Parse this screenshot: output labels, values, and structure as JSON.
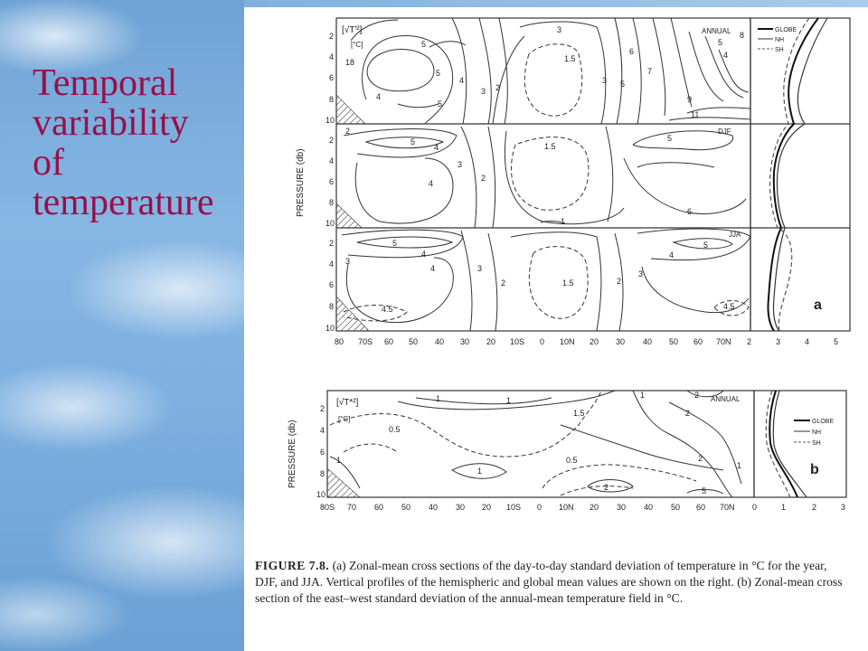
{
  "slide": {
    "title_lines": [
      "Temporal",
      "variability",
      "of",
      "temperature"
    ]
  },
  "figure_a": {
    "ylabel": "PRESSURE (db)",
    "y_ticks": [
      "2",
      "4",
      "6",
      "8",
      "10"
    ],
    "x_ticks": [
      "80",
      "70S",
      "60",
      "50",
      "40",
      "30",
      "20",
      "10S",
      "0",
      "10N",
      "20",
      "30",
      "40",
      "50",
      "60",
      "70N"
    ],
    "profile_ticks": [
      "2",
      "3",
      "4",
      "5"
    ],
    "panels": [
      {
        "season": "ANNUAL",
        "units_label": "[√T'²]",
        "units": "[°C]"
      },
      {
        "season": "DJF"
      },
      {
        "season": "JJA"
      }
    ],
    "legend": [
      "GLOBE",
      "NH",
      "SH"
    ],
    "panel_letter": "a",
    "contour_labels_annual": [
      "3",
      "5",
      "1.5",
      "4",
      "5",
      "6",
      "7",
      "9",
      "11",
      "8",
      "18",
      "5",
      "4",
      "5",
      "3",
      "2",
      "5",
      "3",
      "4"
    ],
    "contour_labels_djf": [
      "2",
      "5",
      "4",
      "1.5",
      "3",
      "2",
      "4",
      "5",
      "6",
      "1"
    ],
    "contour_labels_jja": [
      "5",
      "4",
      "3",
      "4",
      "1.5",
      "2",
      "3",
      "5",
      "4",
      "4.5",
      "4.5",
      "3",
      "2"
    ]
  },
  "figure_b": {
    "ylabel": "PRESSURE (db)",
    "y_ticks": [
      "2",
      "4",
      "6",
      "8",
      "10"
    ],
    "x_ticks": [
      "80S",
      "70",
      "60",
      "50",
      "40",
      "30",
      "20",
      "10S",
      "0",
      "10N",
      "20",
      "30",
      "40",
      "50",
      "60",
      "70N"
    ],
    "profile_ticks": [
      "0",
      "1",
      "2",
      "3"
    ],
    "season": "ANNUAL",
    "units_label": "[√T*²]",
    "units": "[°C]",
    "legend": [
      "GLOBE",
      "NH",
      "SH"
    ],
    "panel_letter": "b",
    "contour_labels": [
      "1",
      "1.5",
      "2",
      "0.5",
      "1",
      "0.5",
      "2",
      "1",
      "1",
      "2",
      "1",
      "5",
      "2",
      "1"
    ]
  },
  "caption": {
    "label": "FIGURE 7.8.",
    "text": "(a) Zonal-mean cross sections of the day-to-day standard deviation of temperature in °C for the year, DJF, and JJA. Vertical profiles of the hemispheric and global mean values are shown on the right. (b) Zonal-mean cross section of the east–west standard deviation of the annual-mean temperature field in °C."
  },
  "colors": {
    "title": "#98104a",
    "sky": "#7eb0e0",
    "ink": "#222222"
  }
}
